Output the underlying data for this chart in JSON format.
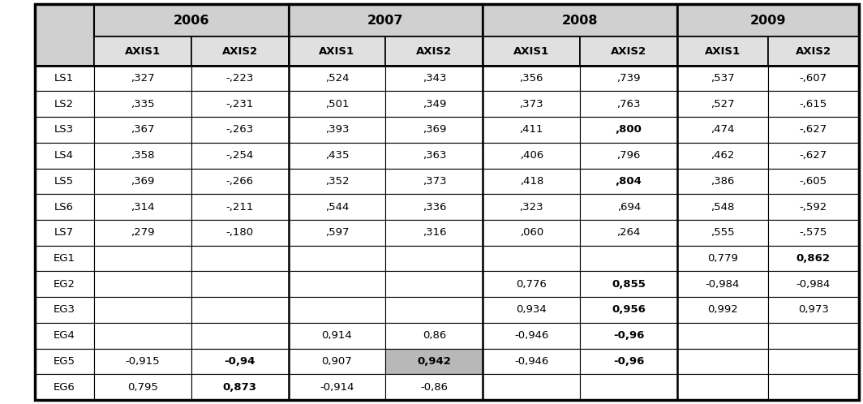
{
  "rows": [
    "LS1",
    "LS2",
    "LS3",
    "LS4",
    "LS5",
    "LS6",
    "LS7",
    "EG1",
    "EG2",
    "EG3",
    "EG4",
    "EG5",
    "EG6"
  ],
  "years": [
    "2006",
    "2007",
    "2008",
    "2009"
  ],
  "axes": [
    "AXIS1",
    "AXIS2"
  ],
  "data": {
    "LS1": {
      "2006": [
        ",327",
        "-,223"
      ],
      "2007": [
        ",524",
        ",343"
      ],
      "2008": [
        ",356",
        ",739"
      ],
      "2009": [
        ",537",
        "-,607"
      ]
    },
    "LS2": {
      "2006": [
        ",335",
        "-,231"
      ],
      "2007": [
        ",501",
        ",349"
      ],
      "2008": [
        ",373",
        ",763"
      ],
      "2009": [
        ",527",
        "-,615"
      ]
    },
    "LS3": {
      "2006": [
        ",367",
        "-,263"
      ],
      "2007": [
        ",393",
        ",369"
      ],
      "2008": [
        ",411",
        ",800"
      ],
      "2009": [
        ",474",
        "-,627"
      ]
    },
    "LS4": {
      "2006": [
        ",358",
        "-,254"
      ],
      "2007": [
        ",435",
        ",363"
      ],
      "2008": [
        ",406",
        ",796"
      ],
      "2009": [
        ",462",
        "-,627"
      ]
    },
    "LS5": {
      "2006": [
        ",369",
        "-,266"
      ],
      "2007": [
        ",352",
        ",373"
      ],
      "2008": [
        ",418",
        ",804"
      ],
      "2009": [
        ",386",
        "-,605"
      ]
    },
    "LS6": {
      "2006": [
        ",314",
        "-,211"
      ],
      "2007": [
        ",544",
        ",336"
      ],
      "2008": [
        ",323",
        ",694"
      ],
      "2009": [
        ",548",
        "-,592"
      ]
    },
    "LS7": {
      "2006": [
        ",279",
        "-,180"
      ],
      "2007": [
        ",597",
        ",316"
      ],
      "2008": [
        ",060",
        ",264"
      ],
      "2009": [
        ",555",
        "-,575"
      ]
    },
    "EG1": {
      "2006": [
        "",
        ""
      ],
      "2007": [
        "",
        ""
      ],
      "2008": [
        "",
        ""
      ],
      "2009": [
        "0,779",
        "0,862"
      ]
    },
    "EG2": {
      "2006": [
        "",
        ""
      ],
      "2007": [
        "",
        ""
      ],
      "2008": [
        "0,776",
        "0,855"
      ],
      "2009": [
        "-0,984",
        "-0,984"
      ]
    },
    "EG3": {
      "2006": [
        "",
        ""
      ],
      "2007": [
        "",
        ""
      ],
      "2008": [
        "0,934",
        "0,956"
      ],
      "2009": [
        "0,992",
        "0,973"
      ]
    },
    "EG4": {
      "2006": [
        "",
        ""
      ],
      "2007": [
        "0,914",
        "0,86"
      ],
      "2008": [
        "-0,946",
        "-0,96"
      ],
      "2009": [
        "",
        ""
      ]
    },
    "EG5": {
      "2006": [
        "-0,915",
        "-0,94"
      ],
      "2007": [
        "0,907",
        "0,942"
      ],
      "2008": [
        "-0,946",
        "-0,96"
      ],
      "2009": [
        "",
        ""
      ]
    },
    "EG6": {
      "2006": [
        "0,795",
        "0,873"
      ],
      "2007": [
        "-0,914",
        "-0,86"
      ],
      "2008": [
        "",
        ""
      ],
      "2009": [
        "",
        ""
      ]
    }
  },
  "bold_cells": {
    "LS3": {
      "2008": [
        false,
        true
      ]
    },
    "LS5": {
      "2008": [
        false,
        true
      ]
    },
    "EG1": {
      "2009": [
        false,
        true
      ]
    },
    "EG2": {
      "2008": [
        false,
        true
      ]
    },
    "EG3": {
      "2008": [
        false,
        true
      ]
    },
    "EG4": {
      "2008": [
        false,
        true
      ]
    },
    "EG5": {
      "2006": [
        false,
        true
      ],
      "2007": [
        false,
        true
      ],
      "2008": [
        false,
        true
      ]
    },
    "EG6": {
      "2006": [
        false,
        true
      ]
    }
  },
  "gray_cells": {
    "EG5": {
      "2007": [
        false,
        true
      ]
    }
  },
  "header_bg": "#d0d0d0",
  "subheader_bg": "#e0e0e0",
  "cell_bg": "#ffffff",
  "gray_highlight": "#b8b8b8",
  "row_label_bg": "#ffffff",
  "border_color": "#000000",
  "text_color": "#000000",
  "figsize": [
    10.64,
    4.98
  ],
  "dpi": 100
}
